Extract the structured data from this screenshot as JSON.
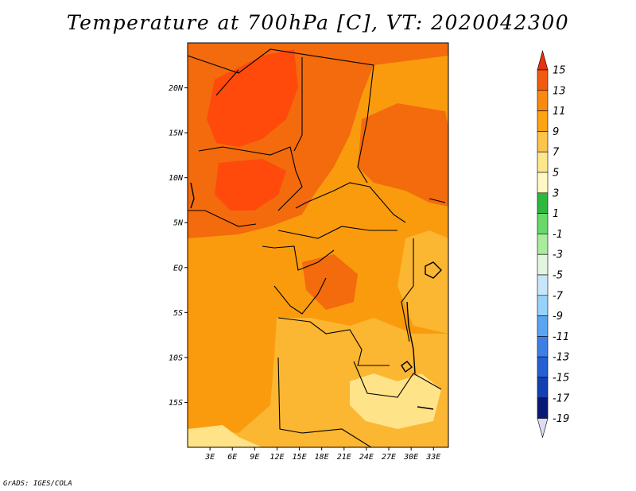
{
  "title": "Temperature at 700hPa [C], VT: 2020042300",
  "credit": "GrADS: IGES/COLA",
  "map": {
    "lon_range": [
      0,
      35
    ],
    "lat_range": [
      -20,
      25
    ],
    "lon_ticks": [
      {
        "value": 3,
        "label": "3E"
      },
      {
        "value": 6,
        "label": "6E"
      },
      {
        "value": 9,
        "label": "9E"
      },
      {
        "value": 12,
        "label": "12E"
      },
      {
        "value": 15,
        "label": "15E"
      },
      {
        "value": 18,
        "label": "18E"
      },
      {
        "value": 21,
        "label": "21E"
      },
      {
        "value": 24,
        "label": "24E"
      },
      {
        "value": 27,
        "label": "27E"
      },
      {
        "value": 30,
        "label": "30E"
      },
      {
        "value": 33,
        "label": "33E"
      }
    ],
    "lat_ticks": [
      {
        "value": 20,
        "label": "20N"
      },
      {
        "value": 15,
        "label": "15N"
      },
      {
        "value": 10,
        "label": "10N"
      },
      {
        "value": 5,
        "label": "5N"
      },
      {
        "value": 0,
        "label": "EQ"
      },
      {
        "value": -5,
        "label": "5S"
      },
      {
        "value": -10,
        "label": "10S"
      },
      {
        "value": -15,
        "label": "15S"
      }
    ],
    "field_colors": {
      "t13": "#ff4a0c",
      "t11": "#f36b0d",
      "t9": "#fa9b0e",
      "t7": "#fbb632",
      "t5": "#ffe389"
    },
    "border_color": "#000000"
  },
  "colorbar": {
    "levels": [
      {
        "label": "15",
        "color": "#e8300f"
      },
      {
        "label": "13",
        "color": "#f35a0f"
      },
      {
        "label": "11",
        "color": "#f98a10"
      },
      {
        "label": "9",
        "color": "#fca413"
      },
      {
        "label": "7",
        "color": "#fdc44a"
      },
      {
        "label": "5",
        "color": "#fde78c"
      },
      {
        "label": "3",
        "color": "#fef9c4"
      },
      {
        "label": "1",
        "color": "#2fb93c"
      },
      {
        "label": "-1",
        "color": "#66d96a"
      },
      {
        "label": "-3",
        "color": "#a9ec9c"
      },
      {
        "label": "-5",
        "color": "#e2f6df"
      },
      {
        "label": "-7",
        "color": "#c8e6fa"
      },
      {
        "label": "-9",
        "color": "#96d2f9"
      },
      {
        "label": "-11",
        "color": "#5aa5f0"
      },
      {
        "label": "-13",
        "color": "#3d7fe6"
      },
      {
        "label": "-15",
        "color": "#2460d4"
      },
      {
        "label": "-17",
        "color": "#1440b4"
      },
      {
        "label": "-19",
        "color": "#081a78"
      }
    ],
    "bottom_arrow_color": "#dcdcf4"
  }
}
